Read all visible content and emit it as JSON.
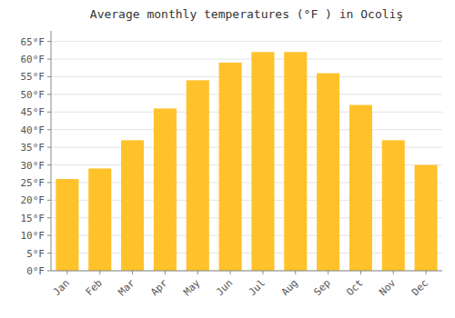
{
  "chart_data": {
    "type": "bar",
    "title": "Average monthly temperatures (°F ) in Ocoliş",
    "categories": [
      "Jan",
      "Feb",
      "Mar",
      "Apr",
      "May",
      "Jun",
      "Jul",
      "Aug",
      "Sep",
      "Oct",
      "Nov",
      "Dec"
    ],
    "values": [
      26,
      29,
      37,
      46,
      54,
      59,
      62,
      62,
      56,
      47,
      37,
      30
    ],
    "color": "#FFC22A",
    "ylim": [
      0,
      68
    ],
    "yticks": [
      {
        "value": 0,
        "label": "0°F"
      },
      {
        "value": 5,
        "label": "5°F"
      },
      {
        "value": 10,
        "label": "10°F"
      },
      {
        "value": 15,
        "label": "15°F"
      },
      {
        "value": 20,
        "label": "20°F"
      },
      {
        "value": 25,
        "label": "25°F"
      },
      {
        "value": 30,
        "label": "30°F"
      },
      {
        "value": 35,
        "label": "35°F"
      },
      {
        "value": 40,
        "label": "40°F"
      },
      {
        "value": 45,
        "label": "45°F"
      },
      {
        "value": 50,
        "label": "50°F"
      },
      {
        "value": 55,
        "label": "55°F"
      },
      {
        "value": 60,
        "label": "60°F"
      },
      {
        "value": 65,
        "label": "65°F"
      }
    ],
    "grid": true
  }
}
